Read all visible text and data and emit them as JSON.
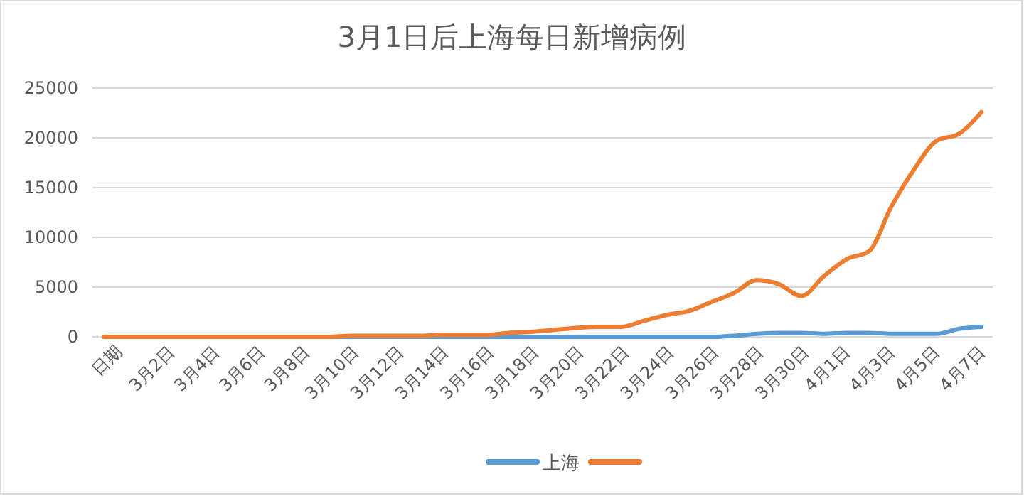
{
  "chart_data": {
    "type": "line",
    "title": "3月1日后上海每日新增病例",
    "categories": [
      "日期",
      null,
      "3月2日",
      null,
      "3月4日",
      null,
      "3月6日",
      null,
      "3月8日",
      null,
      "3月10日",
      null,
      "3月12日",
      null,
      "3月14日",
      null,
      "3月16日",
      null,
      "3月18日",
      null,
      "3月20日",
      null,
      "3月22日",
      null,
      "3月24日",
      null,
      "3月26日",
      null,
      "3月28日",
      null,
      "3月30日",
      null,
      "4月1日",
      null,
      "4月3日",
      null,
      "4月5日",
      null,
      "4月7日",
      null
    ],
    "series": [
      {
        "name": "上海",
        "color": "#5b9bd5",
        "values": [
          null,
          null,
          null,
          null,
          null,
          null,
          null,
          null,
          null,
          0,
          0,
          0,
          0,
          0,
          0,
          0,
          0,
          0,
          0,
          0,
          0,
          0,
          0,
          0,
          0,
          0,
          0,
          0,
          100,
          300,
          400,
          400,
          300,
          400,
          400,
          300,
          300,
          300,
          800,
          1000
        ]
      },
      {
        "color": "#ed7d31",
        "values": [
          0,
          0,
          0,
          0,
          0,
          0,
          0,
          0,
          0,
          0,
          0,
          100,
          100,
          100,
          100,
          200,
          200,
          200,
          400,
          500,
          700,
          900,
          1000,
          1000,
          1600,
          2200,
          2600,
          3500,
          4400,
          5700,
          5300,
          4100,
          6100,
          7800,
          8600,
          13100,
          16800,
          19700,
          20400,
          22600
        ]
      }
    ],
    "ylim": [
      0,
      25000
    ],
    "yticks": [
      0,
      5000,
      10000,
      15000,
      20000,
      25000
    ],
    "grid": "y",
    "legend": "bottom",
    "marker": "none",
    "line_style": "solid"
  }
}
